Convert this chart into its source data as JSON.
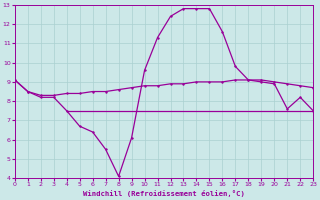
{
  "title": "",
  "xlabel": "Windchill (Refroidissement éolien,°C)",
  "xlim": [
    0,
    23
  ],
  "ylim": [
    4,
    13
  ],
  "yticks": [
    4,
    5,
    6,
    7,
    8,
    9,
    10,
    11,
    12,
    13
  ],
  "xticks": [
    0,
    1,
    2,
    3,
    4,
    5,
    6,
    7,
    8,
    9,
    10,
    11,
    12,
    13,
    14,
    15,
    16,
    17,
    18,
    19,
    20,
    21,
    22,
    23
  ],
  "background_color": "#cce8e8",
  "grid_color": "#aad0d0",
  "line_color": "#990099",
  "windchill_y": [
    9.1,
    8.5,
    8.2,
    8.2,
    7.5,
    6.7,
    6.4,
    5.5,
    4.1,
    6.1,
    9.6,
    11.3,
    12.4,
    12.8,
    12.8,
    12.8,
    11.6,
    9.8,
    9.1,
    9.0,
    8.9,
    7.6,
    8.2,
    7.5
  ],
  "temp_y": [
    9.1,
    8.5,
    8.3,
    8.3,
    8.4,
    8.4,
    8.5,
    8.5,
    8.6,
    8.7,
    8.8,
    8.8,
    8.9,
    8.9,
    9.0,
    9.0,
    9.0,
    9.1,
    9.1,
    9.1,
    9.0,
    8.9,
    8.8,
    8.7
  ],
  "flat_y": 7.5,
  "flat_x_start": 4,
  "flat_x_end": 23
}
